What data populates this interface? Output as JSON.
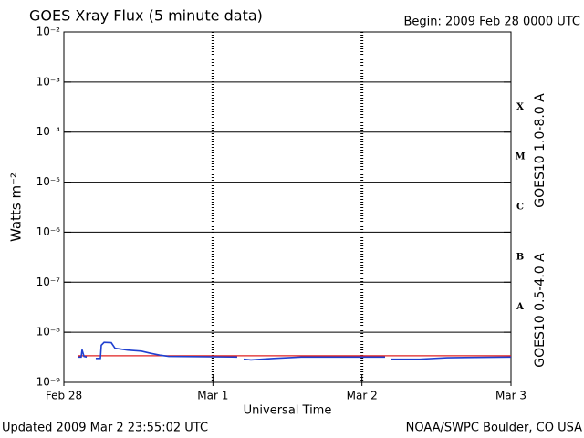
{
  "chart_data": {
    "type": "line",
    "title": "GOES Xray Flux (5 minute data)",
    "subtitle": "Begin:  2009 Feb 28 0000 UTC",
    "x_label": "Universal Time",
    "y_label": "Watts m⁻²",
    "footer_left": "Updated 2009 Mar  2 23:55:02 UTC",
    "footer_right": "NOAA/SWPC Boulder, CO USA",
    "log_y": true,
    "grid": true,
    "legend": "right",
    "xlim": [
      0,
      3
    ],
    "xticks": [
      {
        "value": 0,
        "label": "Feb 28"
      },
      {
        "value": 1,
        "label": "Mar 1"
      },
      {
        "value": 2,
        "label": "Mar 2"
      },
      {
        "value": 3,
        "label": "Mar 3"
      }
    ],
    "ylim": [
      1e-09,
      0.01
    ],
    "yticks": [
      {
        "value": 1e-09,
        "label": "10⁻⁹"
      },
      {
        "value": 1e-08,
        "label": "10⁻⁸"
      },
      {
        "value": 1e-07,
        "label": "10⁻⁷"
      },
      {
        "value": 1e-06,
        "label": "10⁻⁶"
      },
      {
        "value": 1e-05,
        "label": "10⁻⁵"
      },
      {
        "value": 0.0001,
        "label": "10⁻⁴"
      },
      {
        "value": 0.001,
        "label": "10⁻³"
      },
      {
        "value": 0.01,
        "label": "10⁻²"
      }
    ],
    "flare_classes": [
      {
        "label": "A",
        "value": 1e-08
      },
      {
        "label": "B",
        "value": 1e-07
      },
      {
        "label": "C",
        "value": 1e-06
      },
      {
        "label": "M",
        "value": 1e-05
      },
      {
        "label": "X",
        "value": 0.0001
      }
    ],
    "series": [
      {
        "name": "GOES10 1.0-8.0 A",
        "color": "#e02020",
        "x": [
          0.092,
          3.0
        ],
        "values": [
          3.4e-09,
          3.4e-09
        ]
      },
      {
        "name": "GOES10 0.5-4.0 A",
        "color": "#2040d0",
        "x": [
          0.092,
          0.116,
          0.122,
          0.135,
          0.153,
          0.18,
          0.214,
          0.245,
          0.251,
          0.27,
          0.318,
          0.343,
          0.429,
          0.52,
          0.582,
          0.643,
          0.704,
          1.163,
          1.18,
          1.206,
          1.255,
          1.408,
          1.592,
          2.155,
          2.17,
          2.192,
          2.388,
          2.571,
          3.0
        ],
        "values": [
          3.2e-09,
          3.2e-09,
          4.5e-09,
          3.3e-09,
          3.2e-09,
          null,
          3e-09,
          3e-09,
          5.5e-09,
          6.3e-09,
          6.2e-09,
          4.8e-09,
          4.4e-09,
          4.2e-09,
          3.8e-09,
          3.5e-09,
          3.3e-09,
          3.2e-09,
          null,
          2.9e-09,
          2.8e-09,
          3e-09,
          3.2e-09,
          3.2e-09,
          null,
          2.9e-09,
          2.9e-09,
          3.1e-09,
          3.2e-09
        ]
      }
    ]
  }
}
